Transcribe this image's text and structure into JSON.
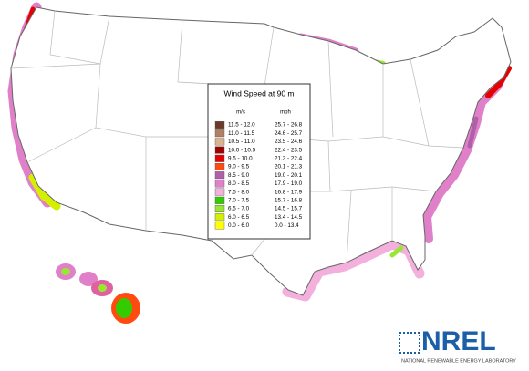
{
  "legend": {
    "title": "Wind Speed at 90 m",
    "headers": [
      "m/s",
      "mph"
    ],
    "rows": [
      {
        "ms": "11.5 - 12.0",
        "mph": "25.7 - 26.8",
        "color": "#6b3a2a"
      },
      {
        "ms": "11.0 - 11.5",
        "mph": "24.6 - 25.7",
        "color": "#b08060"
      },
      {
        "ms": "10.5 - 11.0",
        "mph": "23.5 - 24.6",
        "color": "#dcb48c"
      },
      {
        "ms": "10.0 - 10.5",
        "mph": "22.4 - 23.5",
        "color": "#a00000"
      },
      {
        "ms": "9.5 - 10.0",
        "mph": "21.3 - 22.4",
        "color": "#e60000"
      },
      {
        "ms": "9.0 - 9.5",
        "mph": "20.1 - 21.3",
        "color": "#ff4a10"
      },
      {
        "ms": "8.5 - 9.0",
        "mph": "19.0 - 20.1",
        "color": "#b060a8"
      },
      {
        "ms": "8.0 - 8.5",
        "mph": "17.9 - 19.0",
        "color": "#e080c8"
      },
      {
        "ms": "7.5 - 8.0",
        "mph": "16.8 - 17.9",
        "color": "#f3b0dc"
      },
      {
        "ms": "7.0 - 7.5",
        "mph": "15.7 - 16.8",
        "color": "#33cc00"
      },
      {
        "ms": "6.5 - 7.0",
        "mph": "14.5 - 15.7",
        "color": "#99e633"
      },
      {
        "ms": "6.0 - 6.5",
        "mph": "13.4 - 14.5",
        "color": "#d4f000"
      },
      {
        "ms": "0.0 - 6.0",
        "mph": "0.0 - 13.4",
        "color": "#ffff00"
      }
    ]
  },
  "logo": {
    "name": "NREL",
    "subtitle": "NATIONAL RENEWABLE ENERGY LABORATORY"
  }
}
